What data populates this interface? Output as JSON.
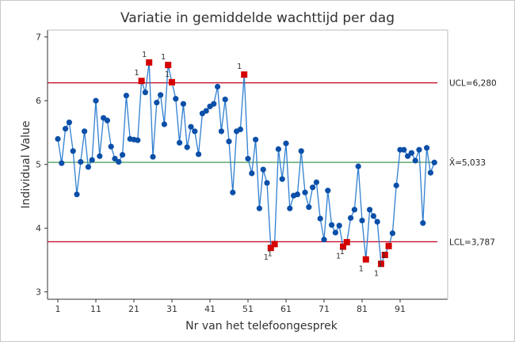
{
  "chart_data": {
    "type": "line",
    "title": "Variatie in gemiddelde wachttijd per dag",
    "xlabel": "Nr van het telefoongesprek",
    "ylabel": "Individual Value",
    "ylim": [
      3,
      7
    ],
    "xlim": [
      1,
      100
    ],
    "yticks": [
      "3",
      "4",
      "5",
      "6",
      "7"
    ],
    "xticks": [
      1,
      11,
      21,
      31,
      41,
      51,
      61,
      71,
      81,
      91
    ],
    "grid": false,
    "legend": "none",
    "control_limits": [
      {
        "label": "UCL=6,280",
        "value": 6.28,
        "color": "#c0001b"
      },
      {
        "label": "X̄=5,033",
        "value": 5.033,
        "color": "#2e8b3a"
      },
      {
        "label": "LCL=3,787",
        "value": 3.787,
        "color": "#c0001b"
      }
    ],
    "test_flag": "1",
    "colors": {
      "line": "#2f7fd0",
      "point": "#0b4fa8",
      "out_of_control": "#d40000"
    },
    "values": [
      5.4,
      5.02,
      5.56,
      5.66,
      5.21,
      4.53,
      5.04,
      5.52,
      4.96,
      5.07,
      6.0,
      5.13,
      5.73,
      5.69,
      5.28,
      5.09,
      5.04,
      5.15,
      6.08,
      5.4,
      5.39,
      5.38,
      6.31,
      6.13,
      6.6,
      5.12,
      5.97,
      6.09,
      5.63,
      6.56,
      6.29,
      6.03,
      5.34,
      5.95,
      5.27,
      5.59,
      5.52,
      5.16,
      5.8,
      5.84,
      5.91,
      5.95,
      6.22,
      5.52,
      6.02,
      5.36,
      4.56,
      5.52,
      5.55,
      6.41,
      5.09,
      4.86,
      5.39,
      4.31,
      4.92,
      4.71,
      3.69,
      3.75,
      5.24,
      4.77,
      5.33,
      4.31,
      4.51,
      4.53,
      5.21,
      4.56,
      4.33,
      4.64,
      4.72,
      4.15,
      3.82,
      4.59,
      4.05,
      3.93,
      4.04,
      3.71,
      3.78,
      4.16,
      4.29,
      4.97,
      4.12,
      3.51,
      4.29,
      4.19,
      4.1,
      3.44,
      3.58,
      3.72,
      3.92,
      4.67,
      5.23,
      5.23,
      5.13,
      5.18,
      5.06,
      5.23,
      4.08,
      5.26,
      4.87,
      5.03
    ]
  }
}
